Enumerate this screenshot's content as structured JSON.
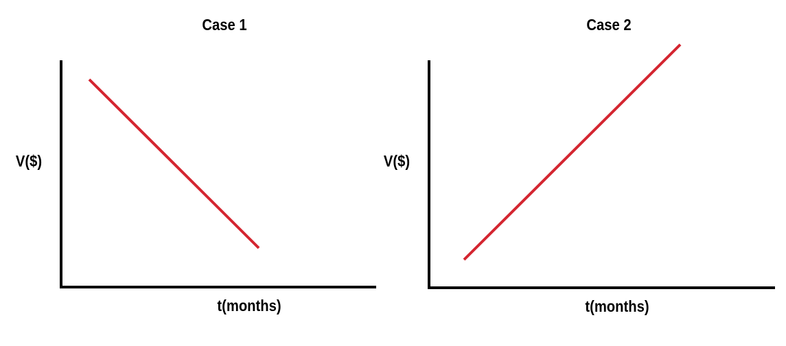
{
  "panels": [
    {
      "title": "Case 1",
      "x_label": "t(months)",
      "y_label": "V($)"
    },
    {
      "title": "Case 2",
      "x_label": "t(months)",
      "y_label": "V($)"
    }
  ]
}
